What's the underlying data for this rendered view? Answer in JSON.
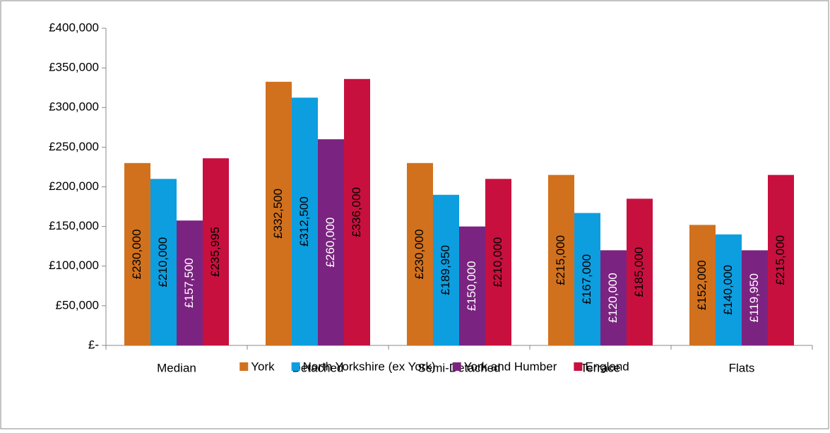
{
  "chart_data": {
    "type": "bar",
    "categories": [
      "Median",
      "Detached",
      "Semi-Detached",
      "Terrace",
      "Flats"
    ],
    "series": [
      {
        "name": "York",
        "color": "#d2711d",
        "label_color": "#000000",
        "values": [
          230000,
          332500,
          230000,
          215000,
          152000
        ],
        "value_labels": [
          "£230,000",
          "£332,500",
          "£230,000",
          "£215,000",
          "£152,000"
        ]
      },
      {
        "name": "North Yorkshire (ex York)",
        "color": "#0d9ee0",
        "label_color": "#000000",
        "values": [
          210000,
          312500,
          189950,
          167000,
          140000
        ],
        "value_labels": [
          "£210,000",
          "£312,500",
          "£189,950",
          "£167,000",
          "£140,000"
        ]
      },
      {
        "name": "York and Humber",
        "color": "#7b2380",
        "label_color": "#ffffff",
        "values": [
          157500,
          260000,
          150000,
          120000,
          119950
        ],
        "value_labels": [
          "£157,500",
          "£260,000",
          "£150,000",
          "£120,000",
          "£119,950"
        ]
      },
      {
        "name": "England",
        "color": "#c8103f",
        "label_color": "#000000",
        "values": [
          235995,
          336000,
          210000,
          185000,
          215000
        ],
        "value_labels": [
          "£235,995",
          "£336,000",
          "£210,000",
          "£185,000",
          "£215,000"
        ]
      }
    ],
    "ylim": [
      0,
      400000
    ],
    "yticks": [
      {
        "value": 0,
        "label": "£-"
      },
      {
        "value": 50000,
        "label": "£50,000"
      },
      {
        "value": 100000,
        "label": "£100,000"
      },
      {
        "value": 150000,
        "label": "£150,000"
      },
      {
        "value": 200000,
        "label": "£200,000"
      },
      {
        "value": 250000,
        "label": "£250,000"
      },
      {
        "value": 300000,
        "label": "£300,000"
      },
      {
        "value": 350000,
        "label": "£350,000"
      },
      {
        "value": 400000,
        "label": "£400,000"
      }
    ],
    "grid": false,
    "legend": "bottom"
  }
}
